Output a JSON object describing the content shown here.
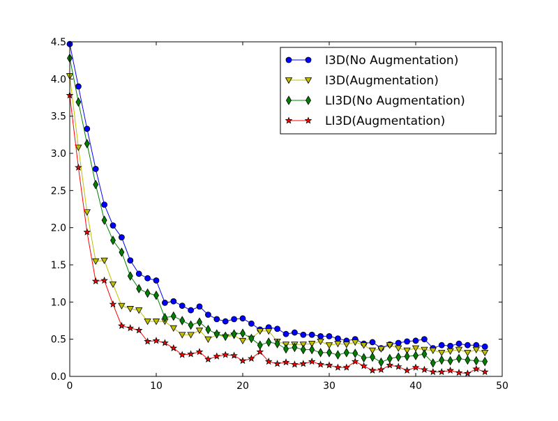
{
  "chart_data": {
    "type": "line",
    "title": "",
    "xlabel": "",
    "ylabel": "",
    "xlim": [
      0,
      50
    ],
    "ylim": [
      0,
      4.5
    ],
    "grid": false,
    "legend_position": "top-right",
    "x_ticks": [
      "0",
      "10",
      "20",
      "30",
      "40",
      "50"
    ],
    "y_ticks": [
      "0.0",
      "0.5",
      "1.0",
      "1.5",
      "2.0",
      "2.5",
      "3.0",
      "3.5",
      "4.0",
      "4.5"
    ],
    "x": [
      0,
      1,
      2,
      3,
      4,
      5,
      6,
      7,
      8,
      9,
      10,
      11,
      12,
      13,
      14,
      15,
      16,
      17,
      18,
      19,
      20,
      21,
      22,
      23,
      24,
      25,
      26,
      27,
      28,
      29,
      30,
      31,
      32,
      33,
      34,
      35,
      36,
      37,
      38,
      39,
      40,
      41,
      42,
      43,
      44,
      45,
      46,
      47,
      48
    ],
    "series": [
      {
        "name": "I3D(No Augmentation)",
        "marker": "circle",
        "color": "#0000ff",
        "values": [
          4.47,
          3.9,
          3.33,
          2.79,
          2.31,
          2.03,
          1.87,
          1.56,
          1.38,
          1.32,
          1.29,
          0.99,
          1.01,
          0.95,
          0.89,
          0.94,
          0.83,
          0.77,
          0.74,
          0.77,
          0.78,
          0.71,
          0.63,
          0.66,
          0.64,
          0.57,
          0.59,
          0.56,
          0.56,
          0.54,
          0.54,
          0.51,
          0.48,
          0.5,
          0.44,
          0.46,
          0.38,
          0.43,
          0.45,
          0.47,
          0.48,
          0.5,
          0.38,
          0.42,
          0.41,
          0.44,
          0.42,
          0.42,
          0.4
        ]
      },
      {
        "name": "I3D(Augmentation)",
        "marker": "triangle-down",
        "color": "#bfbf00",
        "values": [
          4.04,
          3.08,
          2.21,
          1.55,
          1.56,
          1.24,
          0.95,
          0.91,
          0.89,
          0.74,
          0.74,
          0.74,
          0.65,
          0.56,
          0.56,
          0.62,
          0.5,
          0.56,
          0.53,
          0.55,
          0.48,
          0.51,
          0.61,
          0.61,
          0.47,
          0.43,
          0.43,
          0.43,
          0.44,
          0.47,
          0.42,
          0.44,
          0.43,
          0.46,
          0.42,
          0.35,
          0.37,
          0.42,
          0.38,
          0.35,
          0.38,
          0.36,
          0.35,
          0.32,
          0.34,
          0.36,
          0.32,
          0.36,
          0.32
        ]
      },
      {
        "name": "LI3D(No Augmentation)",
        "marker": "diamond",
        "color": "#008000",
        "values": [
          4.28,
          3.69,
          3.13,
          2.58,
          2.1,
          1.83,
          1.67,
          1.35,
          1.18,
          1.12,
          1.09,
          0.79,
          0.81,
          0.75,
          0.69,
          0.73,
          0.63,
          0.57,
          0.54,
          0.57,
          0.58,
          0.51,
          0.42,
          0.46,
          0.44,
          0.37,
          0.39,
          0.36,
          0.36,
          0.32,
          0.32,
          0.29,
          0.32,
          0.31,
          0.25,
          0.26,
          0.19,
          0.24,
          0.26,
          0.27,
          0.28,
          0.3,
          0.18,
          0.22,
          0.21,
          0.24,
          0.22,
          0.21,
          0.2
        ]
      },
      {
        "name": "LI3D(Augmentation)",
        "marker": "star",
        "color": "#ff0000",
        "values": [
          3.78,
          2.81,
          1.94,
          1.28,
          1.29,
          0.97,
          0.68,
          0.65,
          0.62,
          0.47,
          0.48,
          0.45,
          0.38,
          0.29,
          0.3,
          0.33,
          0.23,
          0.27,
          0.29,
          0.28,
          0.21,
          0.24,
          0.33,
          0.2,
          0.17,
          0.19,
          0.16,
          0.17,
          0.2,
          0.16,
          0.15,
          0.12,
          0.12,
          0.2,
          0.14,
          0.08,
          0.09,
          0.15,
          0.13,
          0.08,
          0.12,
          0.09,
          0.06,
          0.06,
          0.08,
          0.05,
          0.04,
          0.1,
          0.06
        ]
      }
    ]
  }
}
